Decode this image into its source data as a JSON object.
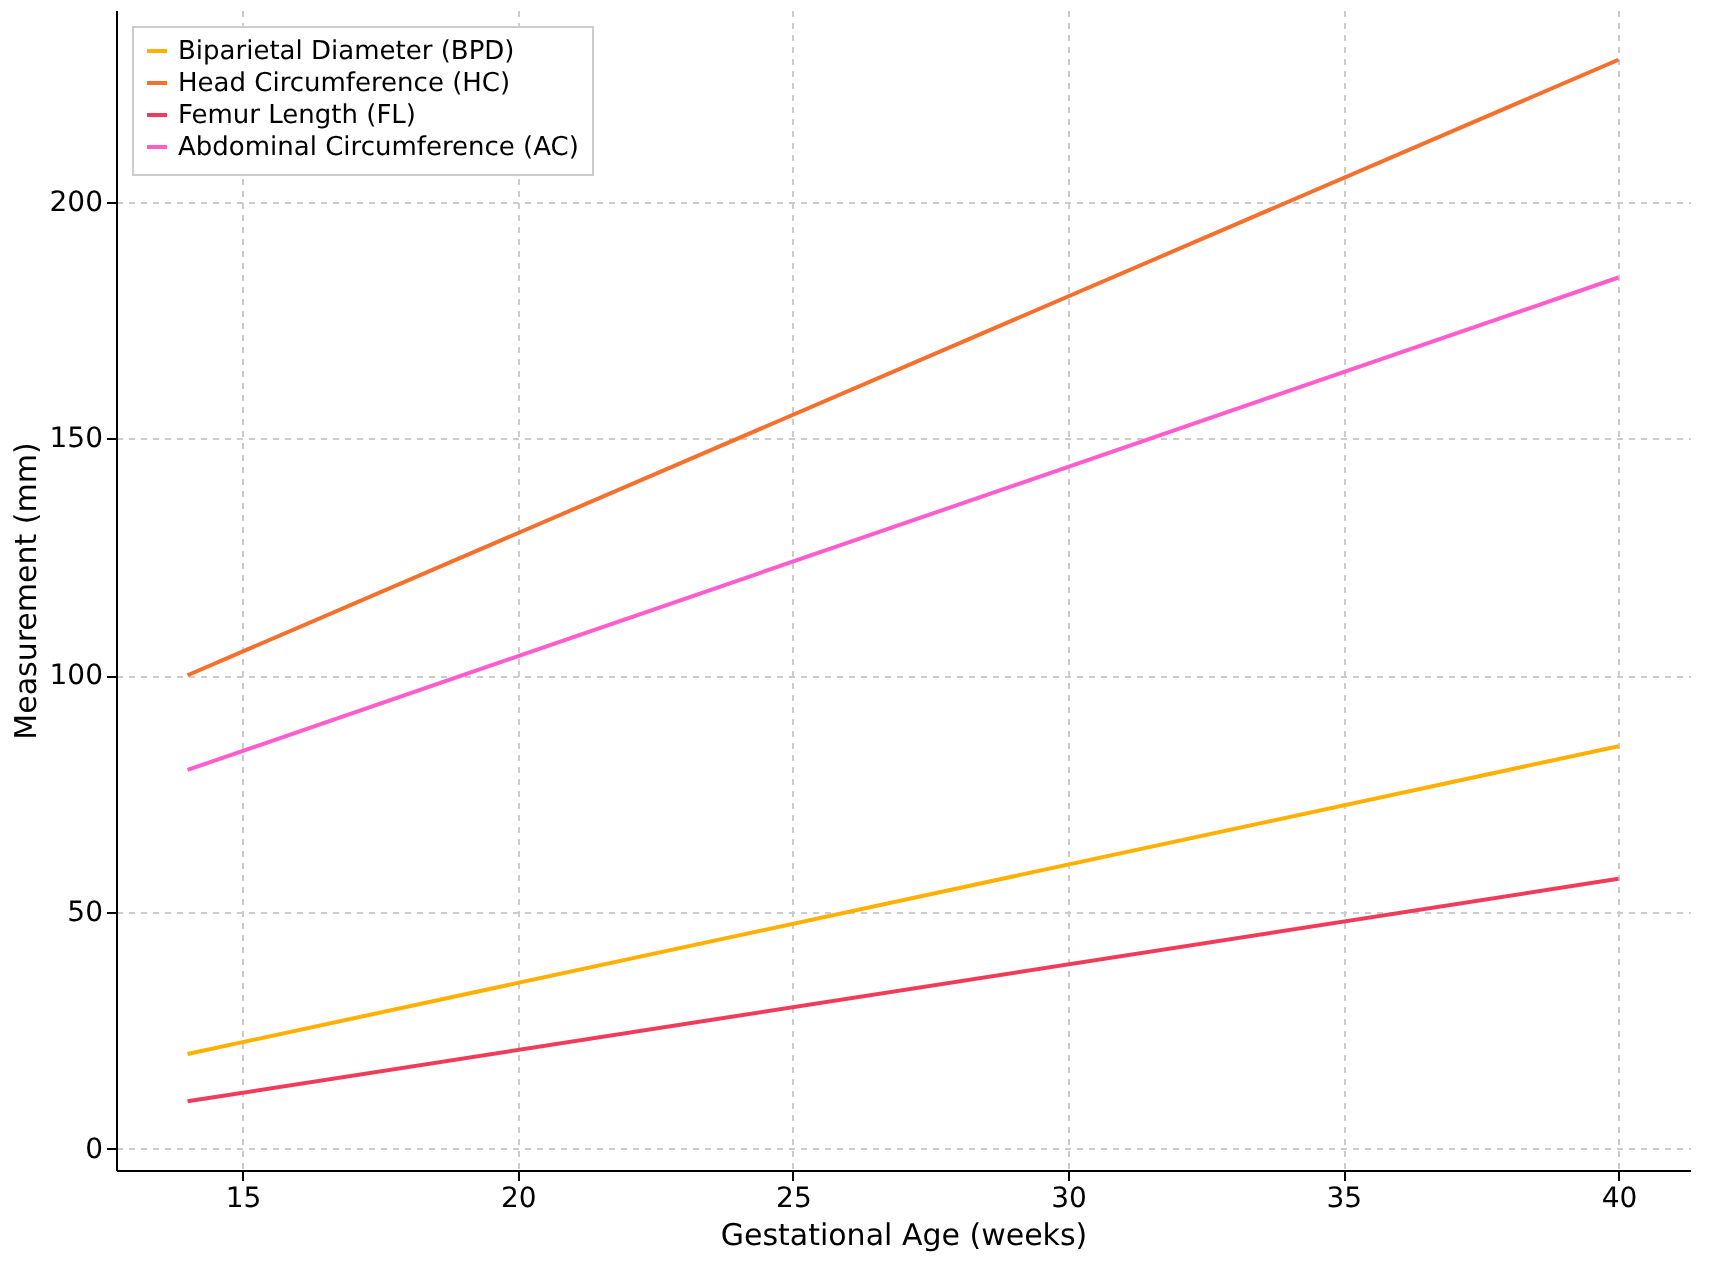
{
  "chart_data": {
    "type": "line",
    "xlabel": "Gestational Age (weeks)",
    "ylabel": "Measurement (mm)",
    "x": [
      14,
      40
    ],
    "series": [
      {
        "name": "Biparietal Diameter (BPD)",
        "color": "#ffb000",
        "values": [
          20,
          85
        ]
      },
      {
        "name": "Head Circumference (HC)",
        "color": "#f5702d",
        "values": [
          100,
          230
        ]
      },
      {
        "name": "Femur Length (FL)",
        "color": "#f03c5a",
        "values": [
          10,
          57
        ]
      },
      {
        "name": "Abdominal Circumference (AC)",
        "color": "#ff5ccd",
        "values": [
          80,
          184
        ]
      }
    ],
    "xlim": [
      12.7,
      41.3
    ],
    "xticks": [
      15,
      20,
      25,
      30,
      35,
      40
    ],
    "ylim": [
      -4.5,
      240.5
    ],
    "yticks": [
      0,
      50,
      100,
      150,
      200
    ],
    "grid": true,
    "legend": "top left",
    "marker": "none",
    "line_style": "solid"
  }
}
